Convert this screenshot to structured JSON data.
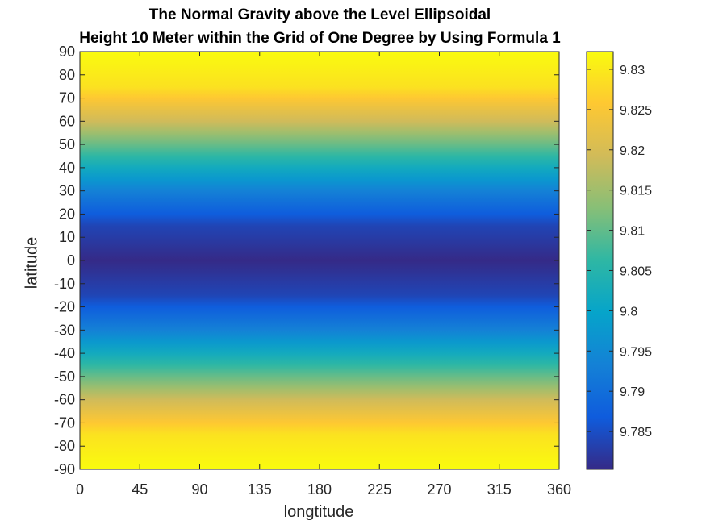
{
  "chart_data": {
    "type": "heatmap",
    "title": [
      "The Normal Gravity above the Level Ellipsoidal",
      "Height 10 Meter within the Grid of One Degree by Using Formula 1"
    ],
    "xlabel": "longtitude",
    "ylabel": "latitude",
    "xlim": [
      0,
      360
    ],
    "ylim": [
      -90,
      90
    ],
    "x_ticks": [
      0,
      45,
      90,
      135,
      180,
      225,
      270,
      315,
      360
    ],
    "y_ticks": [
      90,
      80,
      70,
      60,
      50,
      40,
      30,
      20,
      10,
      0,
      -10,
      -20,
      -30,
      -40,
      -50,
      -60,
      -70,
      -80,
      -90
    ],
    "grid": false,
    "colormap": "parula",
    "colorbar": {
      "range": [
        9.7803,
        9.8322
      ],
      "ticks": [
        "9.83",
        "9.825",
        "9.82",
        "9.815",
        "9.81",
        "9.805",
        "9.8",
        "9.795",
        "9.79",
        "9.785"
      ],
      "tick_values": [
        9.83,
        9.825,
        9.82,
        9.815,
        9.81,
        9.805,
        9.8,
        9.795,
        9.79,
        9.785
      ],
      "colors": [
        "#352A87",
        "#0F5CDD",
        "#1481D6",
        "#06A4CA",
        "#2EB7A4",
        "#87BF77",
        "#D1BB59",
        "#FEC832",
        "#F9FB0E"
      ]
    },
    "value_model": "gravity varies with latitude only (constant across longitude)",
    "latitude_profile": {
      "latitude": [
        -90,
        -75,
        -60,
        -45,
        -30,
        -15,
        0,
        15,
        30,
        45,
        60,
        75,
        90
      ],
      "gravity": [
        9.8322,
        9.829,
        9.8191,
        9.8062,
        9.7932,
        9.7838,
        9.7803,
        9.7838,
        9.7932,
        9.8062,
        9.8191,
        9.829,
        9.8322
      ]
    }
  }
}
